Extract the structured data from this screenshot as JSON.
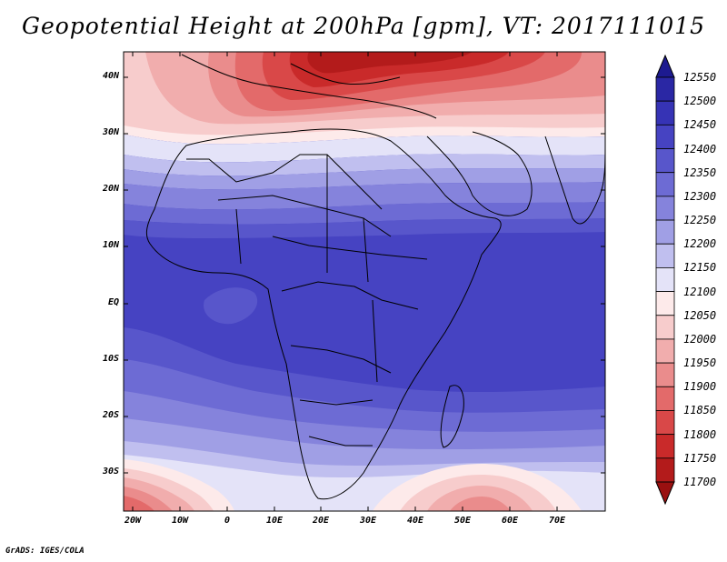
{
  "title": "Geopotential Height at 200hPa [gpm], VT: 2017111015",
  "footer": "GrADS: IGES/COLA",
  "lat_labels": [
    "40N",
    "30N",
    "20N",
    "10N",
    "EQ",
    "10S",
    "20S",
    "30S"
  ],
  "lon_labels": [
    "20W",
    "10W",
    "0",
    "10E",
    "20E",
    "30E",
    "40E",
    "50E",
    "60E",
    "70E"
  ],
  "colorbar": {
    "labels": [
      "12550",
      "12500",
      "12450",
      "12400",
      "12350",
      "12300",
      "12250",
      "12200",
      "12150",
      "12100",
      "12050",
      "12000",
      "11950",
      "11900",
      "11850",
      "11800",
      "11750",
      "11700"
    ],
    "colors": [
      "#1d1a90",
      "#2a27a4",
      "#3633b5",
      "#4643c2",
      "#5856cb",
      "#6d6bd4",
      "#8583dc",
      "#a09fe5",
      "#c0bfef",
      "#e4e3f8",
      "#fdeaea",
      "#f7cccc",
      "#f1adad",
      "#ea8c8c",
      "#e36a6a",
      "#d94848",
      "#c92a2a",
      "#b31b1b",
      "#9a1010"
    ]
  }
}
